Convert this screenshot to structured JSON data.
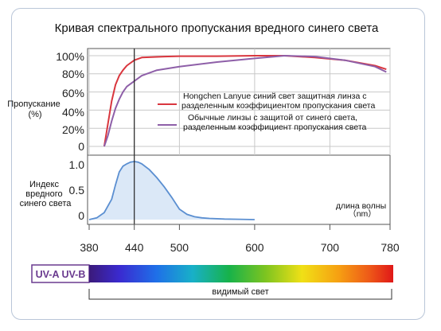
{
  "chart_data": [
    {
      "type": "line",
      "title": "Кривая спектрального пропускания вредного синего света",
      "ylabel_lines": [
        "Пропускание",
        "(%)"
      ],
      "y_ticks": [
        "100%",
        "80%",
        "60%",
        "40%",
        "20%",
        "0"
      ],
      "ylim": [
        0,
        100
      ],
      "xlim": [
        380,
        780
      ],
      "marker_x": 440,
      "series": [
        {
          "name_lines": [
            "Hongchen Lanyue синий свет защитная линза с",
            "разделенным коэффициентом пропускания света"
          ],
          "color": "#d9363e",
          "x": [
            400,
            405,
            410,
            415,
            420,
            425,
            430,
            440,
            450,
            480,
            500,
            550,
            600,
            640,
            680,
            720,
            760,
            775
          ],
          "y": [
            0,
            25,
            50,
            68,
            78,
            84,
            89,
            95,
            98,
            99,
            99.5,
            99.5,
            100,
            100,
            98,
            95,
            89,
            85
          ]
        },
        {
          "name_lines": [
            "Обычные линзы с защитой от синего света,",
            "разделенным коэффициент пропускания света"
          ],
          "color": "#8e5fa8",
          "x": [
            400,
            405,
            410,
            415,
            420,
            425,
            430,
            440,
            450,
            470,
            500,
            550,
            600,
            640,
            680,
            720,
            760,
            775
          ],
          "y": [
            0,
            12,
            28,
            42,
            52,
            60,
            66,
            72,
            78,
            84,
            88,
            93,
            97,
            100,
            99,
            95,
            88,
            82
          ]
        }
      ]
    },
    {
      "type": "area",
      "ylabel_lines": [
        "Индекс",
        "вредного",
        "синего света"
      ],
      "y_ticks": [
        "1.0",
        "0.5",
        "0"
      ],
      "ylim": [
        0,
        1.0
      ],
      "xlim": [
        380,
        780
      ],
      "unit_lines": [
        "длина волны",
        "（nm）"
      ],
      "color": "#5b8fd1",
      "x": [
        380,
        390,
        400,
        410,
        415,
        420,
        425,
        430,
        435,
        440,
        445,
        450,
        460,
        470,
        480,
        490,
        500,
        510,
        520,
        530,
        540,
        560,
        580,
        600
      ],
      "y": [
        0.0,
        0.03,
        0.12,
        0.35,
        0.6,
        0.82,
        0.92,
        0.96,
        0.99,
        1.0,
        0.99,
        0.96,
        0.86,
        0.72,
        0.56,
        0.38,
        0.18,
        0.09,
        0.05,
        0.03,
        0.02,
        0.01,
        0.005,
        0.0
      ]
    }
  ],
  "x_ticks": [
    380,
    440,
    500,
    600,
    700,
    780
  ],
  "spectrum": {
    "uv_label": "UV-A UV-B",
    "visible_label": "видимый свет",
    "uv_color": "#6a3a8f"
  }
}
